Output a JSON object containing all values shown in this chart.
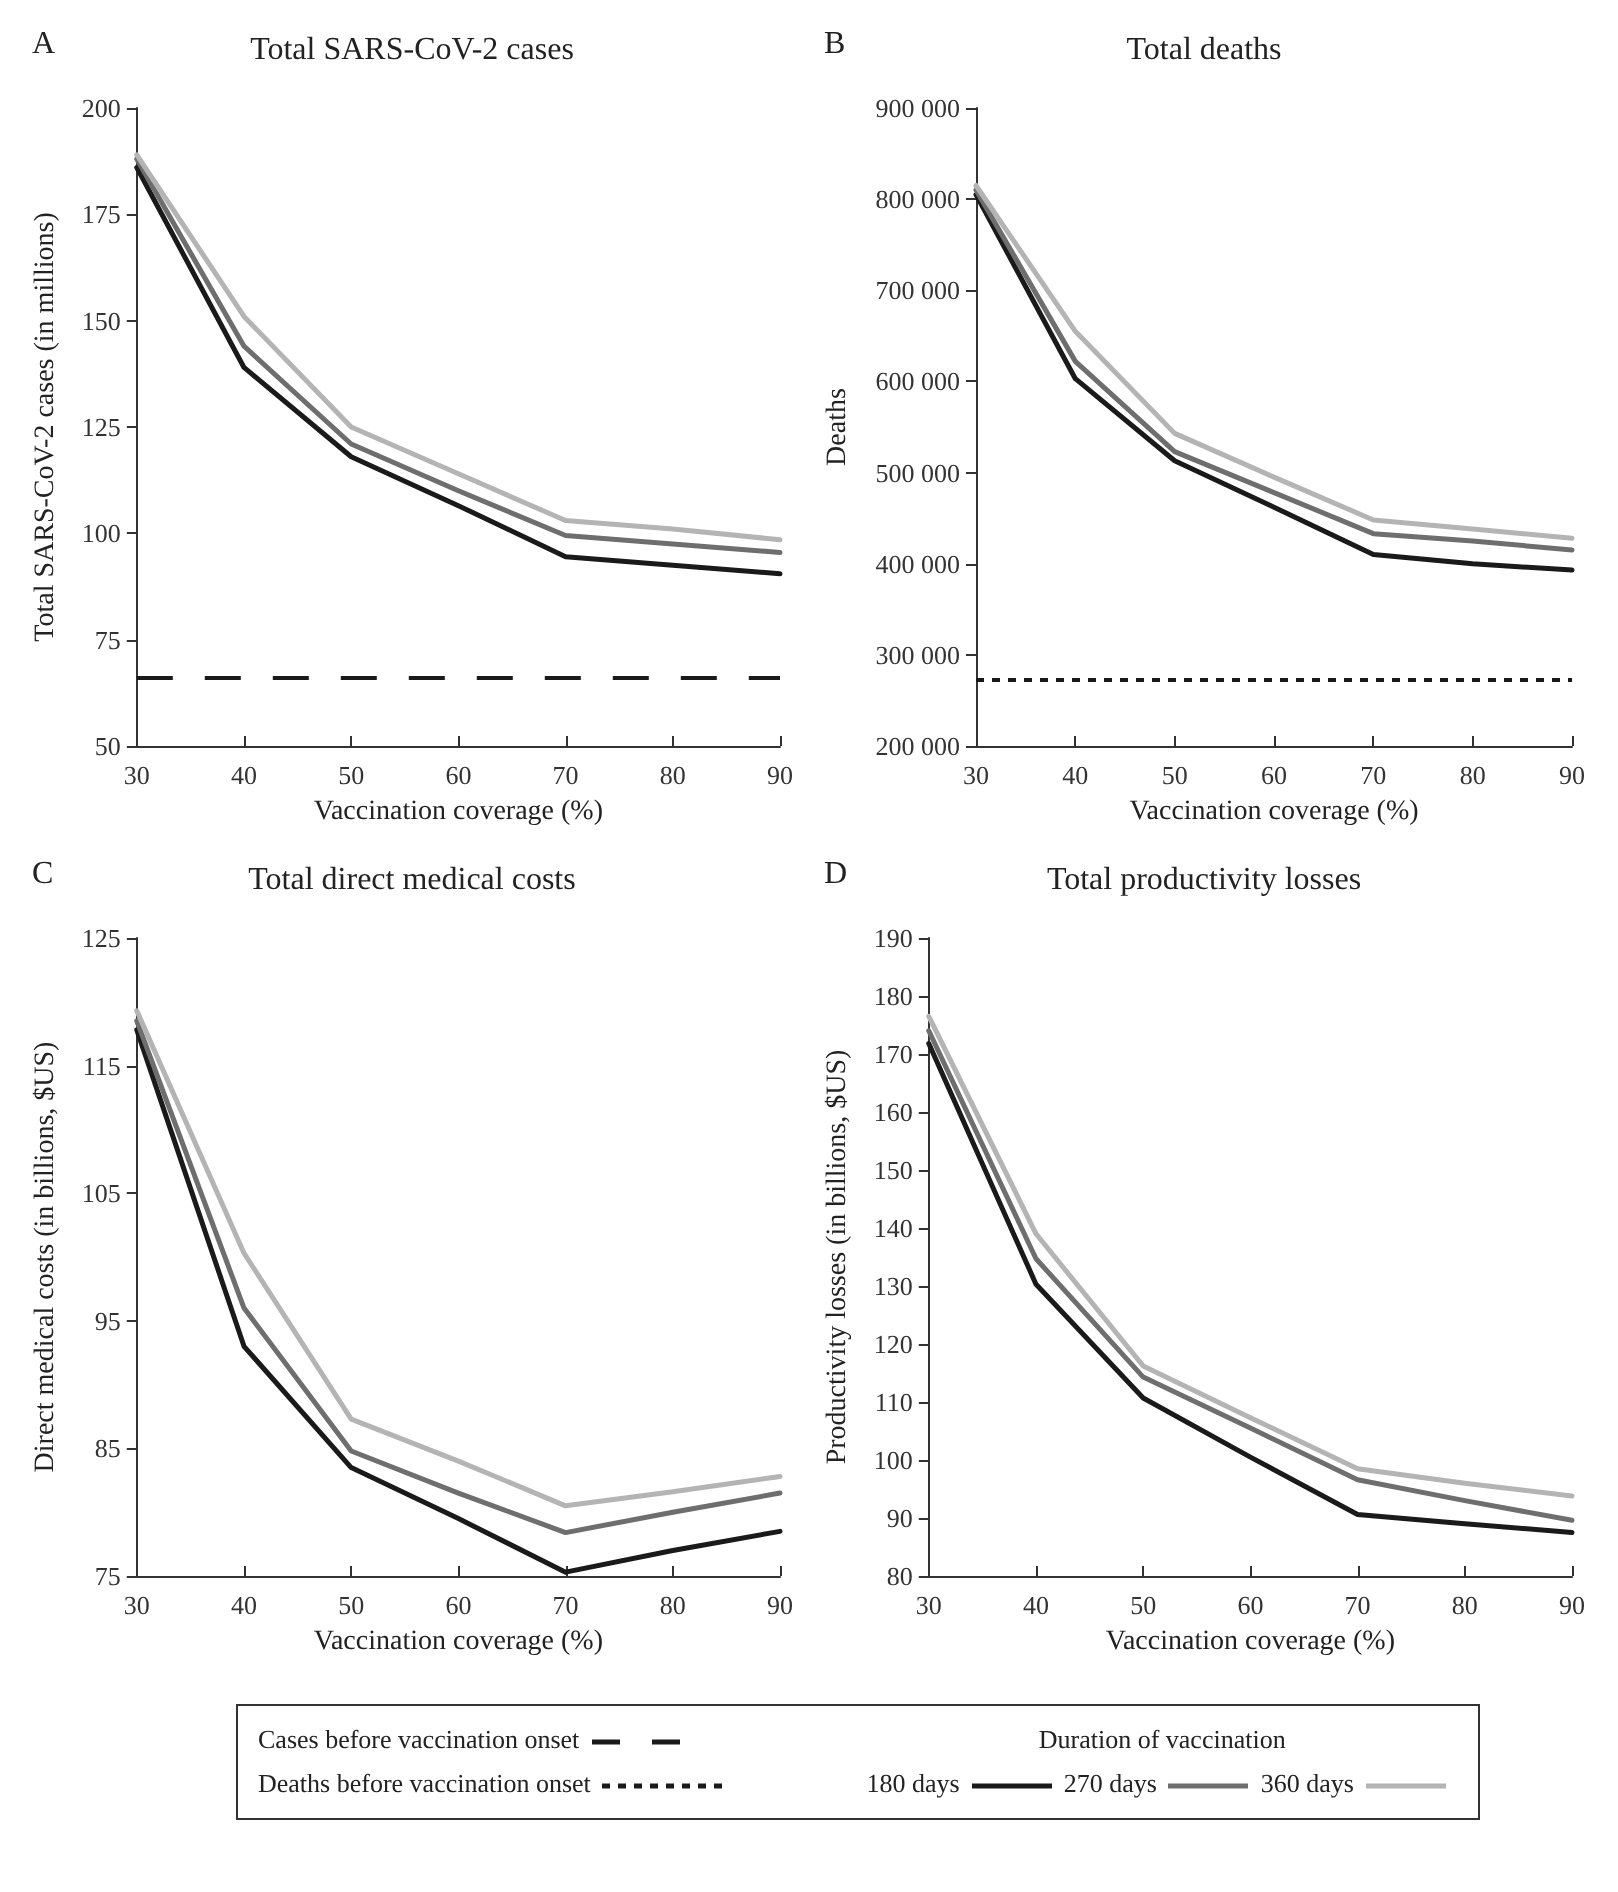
{
  "chart_data": [
    {
      "type": "line",
      "title": "Total SARS-CoV-2 cases",
      "annotations": [
        "A"
      ],
      "xlabel": "Vaccination coverage (%)",
      "ylabel": "Total SARS-CoV-2 cases (in millions)",
      "x": [
        30,
        40,
        50,
        60,
        70,
        80,
        90
      ],
      "xlim": [
        30,
        90
      ],
      "xticks": [
        30,
        40,
        50,
        60,
        70,
        80,
        90
      ],
      "ylim": [
        50,
        200
      ],
      "yticks": [
        50,
        75,
        100,
        125,
        150,
        175,
        200
      ],
      "grid": false,
      "legend": "bottom",
      "legend_title": "Duration of vaccination",
      "marker": "none",
      "line_style": "solid",
      "series": [
        {
          "name": "180 days",
          "color": "#1a1a1a",
          "values": [
            186,
            139,
            118,
            106.5,
            94.5,
            92.5,
            90.5
          ]
        },
        {
          "name": "270 days",
          "color": "#6e6e6e",
          "values": [
            188,
            144,
            121,
            110,
            99.5,
            97.5,
            95.5
          ]
        },
        {
          "name": "360 days",
          "color": "#b4b4b4",
          "values": [
            189,
            151,
            125,
            114,
            103,
            101,
            98.5
          ]
        }
      ],
      "ref_lines": [
        {
          "axis": "y",
          "value": 66,
          "label": "Cases before vaccination onset",
          "color": "#1a1a1a",
          "line_style": "dashed"
        }
      ]
    },
    {
      "type": "line",
      "title": "Total deaths",
      "annotations": [
        "B"
      ],
      "xlabel": "Vaccination coverage (%)",
      "ylabel": "Deaths",
      "x": [
        30,
        40,
        50,
        60,
        70,
        80,
        90
      ],
      "xlim": [
        30,
        90
      ],
      "xticks": [
        30,
        40,
        50,
        60,
        70,
        80,
        90
      ],
      "ylim": [
        200000,
        900000
      ],
      "yticks": [
        {
          "value": 200000,
          "label": "200 000"
        },
        {
          "value": 300000,
          "label": "300 000"
        },
        {
          "value": 400000,
          "label": "400 000"
        },
        {
          "value": 500000,
          "label": "500 000"
        },
        {
          "value": 600000,
          "label": "600 000"
        },
        {
          "value": 700000,
          "label": "700 000"
        },
        {
          "value": 800000,
          "label": "800 000"
        },
        {
          "value": 900000,
          "label": "900 000"
        }
      ],
      "grid": false,
      "marker": "none",
      "line_style": "solid",
      "series": [
        {
          "color": "#1a1a1a",
          "values": [
            805000,
            603000,
            513000,
            462000,
            410000,
            400000,
            393000
          ]
        },
        {
          "color": "#6e6e6e",
          "values": [
            810000,
            622000,
            523000,
            478000,
            433000,
            425000,
            415000
          ]
        },
        {
          "color": "#b4b4b4",
          "values": [
            815000,
            655000,
            543000,
            495000,
            448000,
            438000,
            428000
          ]
        }
      ],
      "ref_lines": [
        {
          "axis": "y",
          "value": 272000,
          "label": "Deaths before vaccination onset",
          "color": "#1a1a1a",
          "line_style": "dotted"
        }
      ]
    },
    {
      "type": "line",
      "title": "Total direct medical costs",
      "annotations": [
        "C"
      ],
      "xlabel": "Vaccination coverage (%)",
      "ylabel": "Direct medical costs (in billions, $US)",
      "x": [
        30,
        40,
        50,
        60,
        70,
        80,
        90
      ],
      "xlim": [
        30,
        90
      ],
      "xticks": [
        30,
        40,
        50,
        60,
        70,
        80,
        90
      ],
      "ylim": [
        75,
        125
      ],
      "yticks": [
        75,
        85,
        95,
        105,
        115,
        125
      ],
      "grid": false,
      "marker": "none",
      "line_style": "solid",
      "series": [
        {
          "color": "#1a1a1a",
          "values": [
            117.8,
            93,
            83.5,
            79.5,
            75.3,
            77,
            78.5
          ]
        },
        {
          "color": "#6e6e6e",
          "values": [
            118.5,
            96,
            84.8,
            81.5,
            78.4,
            80,
            81.5
          ]
        },
        {
          "color": "#b4b4b4",
          "values": [
            119.3,
            100.3,
            87.3,
            84,
            80.5,
            81.6,
            82.8
          ]
        }
      ]
    },
    {
      "type": "line",
      "title": "Total productivity losses",
      "annotations": [
        "D"
      ],
      "xlabel": "Vaccination coverage (%)",
      "ylabel": "Productivity losses (in billions, $US)",
      "x": [
        30,
        40,
        50,
        60,
        70,
        80,
        90
      ],
      "xlim": [
        30,
        90
      ],
      "xticks": [
        30,
        40,
        50,
        60,
        70,
        80,
        90
      ],
      "ylim": [
        80,
        190
      ],
      "yticks": [
        80,
        90,
        100,
        110,
        120,
        130,
        140,
        150,
        160,
        170,
        180,
        190
      ],
      "grid": false,
      "marker": "none",
      "line_style": "solid",
      "series": [
        {
          "color": "#1a1a1a",
          "values": [
            171.8,
            130.3,
            110.7,
            100.5,
            90.6,
            89,
            87.5
          ]
        },
        {
          "color": "#6e6e6e",
          "values": [
            174,
            134.7,
            114.3,
            105.5,
            96.6,
            93,
            89.6
          ]
        },
        {
          "color": "#b4b4b4",
          "values": [
            176.5,
            139,
            116.2,
            107.3,
            98.5,
            96,
            93.8
          ]
        }
      ]
    }
  ]
}
